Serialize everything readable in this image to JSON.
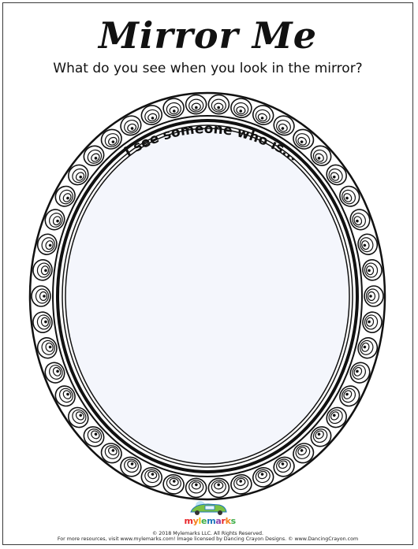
{
  "worksheet": {
    "title": "Mirror Me",
    "subtitle": "What do you see when you look in the mirror?",
    "prompt": "I see someone who is..."
  },
  "footer": {
    "brand": "mylemarks",
    "copyright": "© 2018 Mylemarks LLC. All Rights Reserved.",
    "credits": "For more resources, visit www.mylemarks.com! Image licensed by Dancing Crayon Designs. © www.DancingCrayon.com"
  },
  "colors": {
    "mirror_fill": "#f4f6fc",
    "frame_ink": "#111111",
    "brand_letters": [
      "#e8262a",
      "#f58220",
      "#f2c200",
      "#3fae49",
      "#1c75bc",
      "#8e44ad",
      "#e8262a",
      "#f58220",
      "#3fae49"
    ]
  },
  "icons": {
    "logo": "mylemarks-logo-icon",
    "frame": "ornate-mirror-frame"
  }
}
